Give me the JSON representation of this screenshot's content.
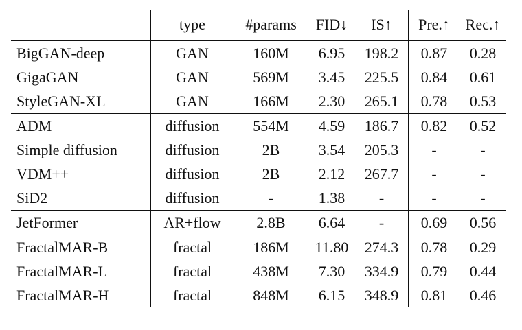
{
  "columns": [
    "",
    "type",
    "#params",
    "FID↓",
    "IS↑",
    "Pre.↑",
    "Rec.↑"
  ],
  "rows": [
    {
      "name": "BigGAN-deep",
      "type": "GAN",
      "params": "160M",
      "fid": "6.95",
      "is": "198.2",
      "pre": "0.87",
      "rec": "0.28",
      "bold": [
        "pre"
      ],
      "bold_name": false,
      "group_end": false
    },
    {
      "name": "GigaGAN",
      "type": "GAN",
      "params": "569M",
      "fid": "3.45",
      "is": "225.5",
      "pre": "0.84",
      "rec": "0.61",
      "bold": [
        "rec"
      ],
      "bold_name": false,
      "group_end": false
    },
    {
      "name": "StyleGAN-XL",
      "type": "GAN",
      "params": "166M",
      "fid": "2.30",
      "is": "265.1",
      "pre": "0.78",
      "rec": "0.53",
      "bold": [],
      "bold_name": false,
      "group_end": true
    },
    {
      "name": "ADM",
      "type": "diffusion",
      "params": "554M",
      "fid": "4.59",
      "is": "186.7",
      "pre": "0.82",
      "rec": "0.52",
      "bold": [],
      "bold_name": false,
      "group_end": false
    },
    {
      "name": "Simple diffusion",
      "type": "diffusion",
      "params": "2B",
      "fid": "3.54",
      "is": "205.3",
      "pre": "-",
      "rec": "-",
      "bold": [],
      "bold_name": false,
      "group_end": false
    },
    {
      "name": "VDM++",
      "type": "diffusion",
      "params": "2B",
      "fid": "2.12",
      "is": "267.7",
      "pre": "-",
      "rec": "-",
      "bold": [],
      "bold_name": false,
      "group_end": false
    },
    {
      "name": "SiD2",
      "type": "diffusion",
      "params": "-",
      "fid": "1.38",
      "is": "-",
      "pre": "-",
      "rec": "-",
      "bold": [
        "fid"
      ],
      "bold_name": false,
      "group_end": true
    },
    {
      "name": "JetFormer",
      "type": "AR+flow",
      "params": "2.8B",
      "fid": "6.64",
      "is": "-",
      "pre": "0.69",
      "rec": "0.56",
      "bold": [],
      "bold_name": false,
      "group_end": true
    },
    {
      "name": "FractalMAR-B",
      "type": "fractal",
      "params": "186M",
      "fid": "11.80",
      "is": "274.3",
      "pre": "0.78",
      "rec": "0.29",
      "bold": [],
      "bold_name": true,
      "group_end": false
    },
    {
      "name": "FractalMAR-L",
      "type": "fractal",
      "params": "438M",
      "fid": "7.30",
      "is": "334.9",
      "pre": "0.79",
      "rec": "0.44",
      "bold": [],
      "bold_name": true,
      "group_end": false
    },
    {
      "name": "FractalMAR-H",
      "type": "fractal",
      "params": "848M",
      "fid": "6.15",
      "is": "348.9",
      "pre": "0.81",
      "rec": "0.46",
      "bold": [
        "is"
      ],
      "bold_name": true,
      "group_end": false
    }
  ]
}
